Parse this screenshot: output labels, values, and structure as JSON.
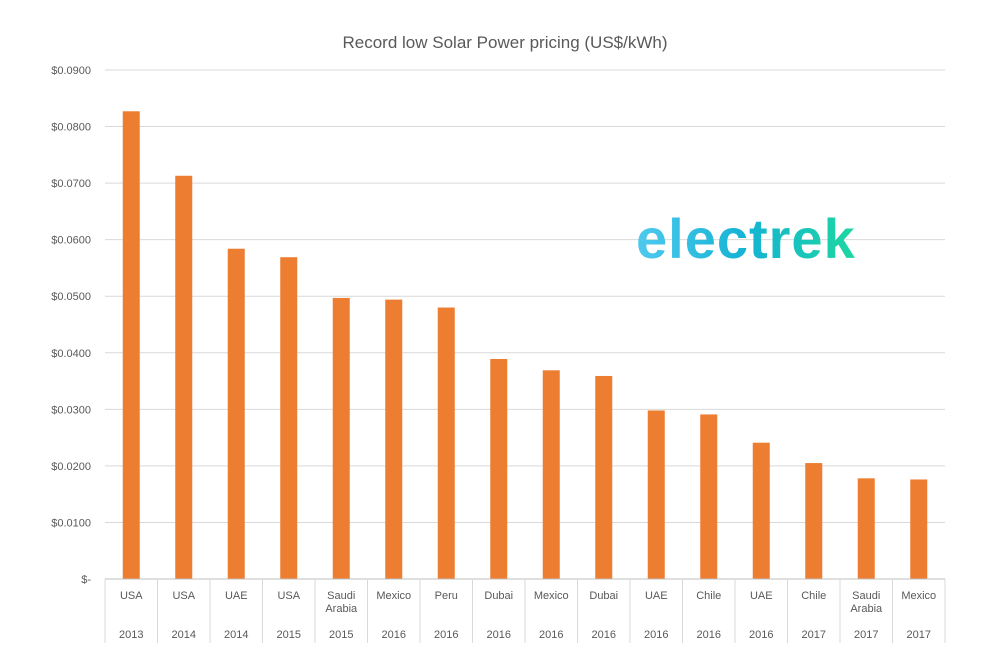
{
  "chart_data": {
    "type": "bar",
    "title": "Record low Solar Power pricing (US$/kWh)",
    "xlabel": "",
    "ylabel": "",
    "ylim": [
      0,
      0.09
    ],
    "y_ticks": [
      {
        "value": 0,
        "label": "$-"
      },
      {
        "value": 0.01,
        "label": "$0.0100"
      },
      {
        "value": 0.02,
        "label": "$0.0200"
      },
      {
        "value": 0.03,
        "label": "$0.0300"
      },
      {
        "value": 0.04,
        "label": "$0.0400"
      },
      {
        "value": 0.05,
        "label": "$0.0500"
      },
      {
        "value": 0.06,
        "label": "$0.0600"
      },
      {
        "value": 0.07,
        "label": "$0.0700"
      },
      {
        "value": 0.08,
        "label": "$0.0800"
      },
      {
        "value": 0.09,
        "label": "$0.0900"
      }
    ],
    "grid": true,
    "legend": "none",
    "bar_color": "#ED7D31",
    "categories": [
      {
        "country": [
          "USA"
        ],
        "year": "2013"
      },
      {
        "country": [
          "USA"
        ],
        "year": "2014"
      },
      {
        "country": [
          "UAE"
        ],
        "year": "2014"
      },
      {
        "country": [
          "USA"
        ],
        "year": "2015"
      },
      {
        "country": [
          "Saudi",
          "Arabia"
        ],
        "year": "2015"
      },
      {
        "country": [
          "Mexico"
        ],
        "year": "2016"
      },
      {
        "country": [
          "Peru"
        ],
        "year": "2016"
      },
      {
        "country": [
          "Dubai"
        ],
        "year": "2016"
      },
      {
        "country": [
          "Mexico"
        ],
        "year": "2016"
      },
      {
        "country": [
          "Dubai"
        ],
        "year": "2016"
      },
      {
        "country": [
          "UAE"
        ],
        "year": "2016"
      },
      {
        "country": [
          "Chile"
        ],
        "year": "2016"
      },
      {
        "country": [
          "UAE"
        ],
        "year": "2016"
      },
      {
        "country": [
          "Chile"
        ],
        "year": "2017"
      },
      {
        "country": [
          "Saudi",
          "Arabia"
        ],
        "year": "2017"
      },
      {
        "country": [
          "Mexico"
        ],
        "year": "2017"
      }
    ],
    "values": [
      0.0827,
      0.0713,
      0.0584,
      0.0569,
      0.0497,
      0.0494,
      0.048,
      0.0389,
      0.0369,
      0.0359,
      0.0298,
      0.0291,
      0.0241,
      0.0205,
      0.0178,
      0.0176
    ]
  },
  "watermark": {
    "text": "electrek",
    "gradient_start": "#4FC9EE",
    "gradient_mid": "#14B3D4",
    "gradient_end": "#1DD7A0"
  }
}
